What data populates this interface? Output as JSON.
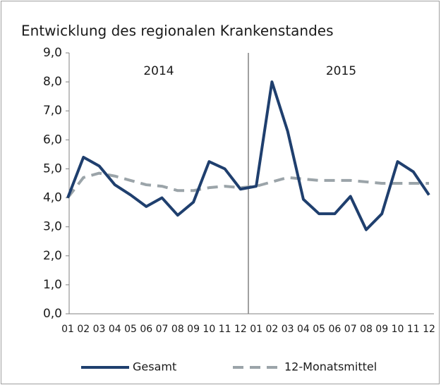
{
  "chart_data": {
    "type": "line",
    "title": "Entwicklung des regionalen Krankenstandes",
    "annotations": [
      "2014",
      "2015"
    ],
    "categories": [
      "01",
      "02",
      "03",
      "04",
      "05",
      "06",
      "07",
      "08",
      "09",
      "10",
      "11",
      "12",
      "01",
      "02",
      "03",
      "04",
      "05",
      "06",
      "07",
      "08",
      "09",
      "10",
      "11",
      "12"
    ],
    "series": [
      {
        "name": "Gesamt",
        "color": "#1f3f6e",
        "style": "solid",
        "values": [
          4.0,
          5.4,
          5.1,
          4.45,
          4.1,
          3.7,
          4.0,
          3.4,
          3.85,
          5.25,
          5.0,
          4.3,
          4.4,
          8.0,
          6.3,
          3.95,
          3.45,
          3.45,
          4.05,
          2.9,
          3.45,
          5.25,
          4.9,
          4.1
        ]
      },
      {
        "name": "12-Monatsmittel",
        "color": "#9ba4a9",
        "style": "dashed",
        "values": [
          4.0,
          4.7,
          4.85,
          4.75,
          4.6,
          4.45,
          4.4,
          4.25,
          4.25,
          4.35,
          4.4,
          4.35,
          4.4,
          4.55,
          4.7,
          4.65,
          4.6,
          4.6,
          4.6,
          4.55,
          4.5,
          4.5,
          4.5,
          4.5
        ]
      }
    ],
    "ylim": [
      0,
      9
    ],
    "yticks": [
      {
        "value": 0,
        "label": "0,0"
      },
      {
        "value": 1,
        "label": "1,0"
      },
      {
        "value": 2,
        "label": "2,0"
      },
      {
        "value": 3,
        "label": "3,0"
      },
      {
        "value": 4,
        "label": "4,0"
      },
      {
        "value": 5,
        "label": "5,0"
      },
      {
        "value": 6,
        "label": "6,0"
      },
      {
        "value": 7,
        "label": "7,0"
      },
      {
        "value": 8,
        "label": "8,0"
      },
      {
        "value": 9,
        "label": "9,0"
      }
    ],
    "grid": false,
    "legend": "bottom"
  }
}
